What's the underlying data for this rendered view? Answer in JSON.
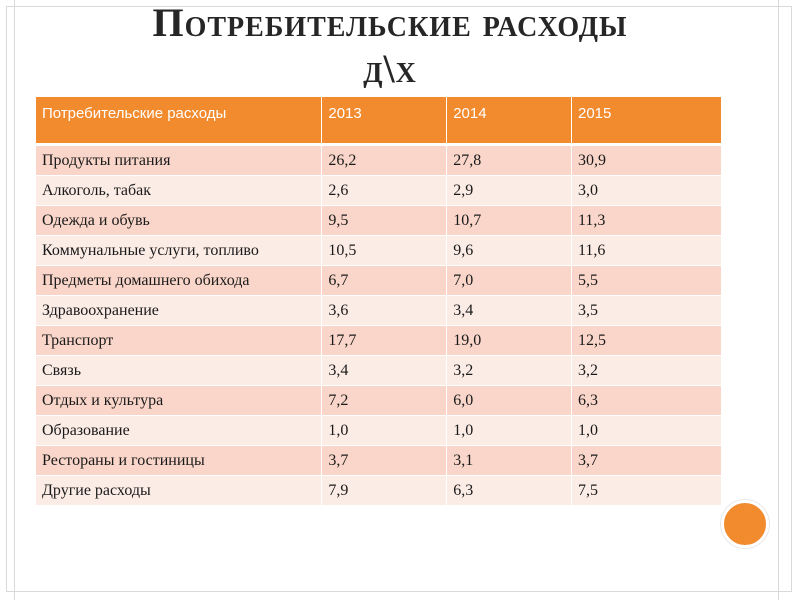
{
  "title": {
    "line1": "Потребительские расходы",
    "line2": "д\\х"
  },
  "table": {
    "headers": [
      "Потребительские расходы",
      "2013",
      "2014",
      "2015"
    ],
    "rows": [
      [
        "Продукты питания",
        "26,2",
        "27,8",
        "30,9"
      ],
      [
        "Алкоголь, табак",
        "2,6",
        "2,9",
        "3,0"
      ],
      [
        "Одежда и обувь",
        "9,5",
        "10,7",
        "11,3"
      ],
      [
        "Коммунальные услуги, топливо",
        "10,5",
        "9,6",
        "11,6"
      ],
      [
        "Предметы домашнего обихода",
        "6,7",
        "7,0",
        "5,5"
      ],
      [
        "Здравоохранение",
        "3,6",
        "3,4",
        "3,5"
      ],
      [
        "Транспорт",
        "17,7",
        "19,0",
        "12,5"
      ],
      [
        "Связь",
        "3,4",
        "3,2",
        "3,2"
      ],
      [
        "Отдых и культура",
        "7,2",
        "6,0",
        "6,3"
      ],
      [
        "Образование",
        "1,0",
        "1,0",
        "1,0"
      ],
      [
        "Рестораны и гостиницы",
        "3,7",
        "3,1",
        "3,7"
      ],
      [
        "Другие расходы",
        "7,9",
        "6,3",
        "7,5"
      ]
    ]
  },
  "colors": {
    "accent": "#f28a2e",
    "row_odd": "#f9d6c9",
    "row_even": "#fcece6"
  }
}
